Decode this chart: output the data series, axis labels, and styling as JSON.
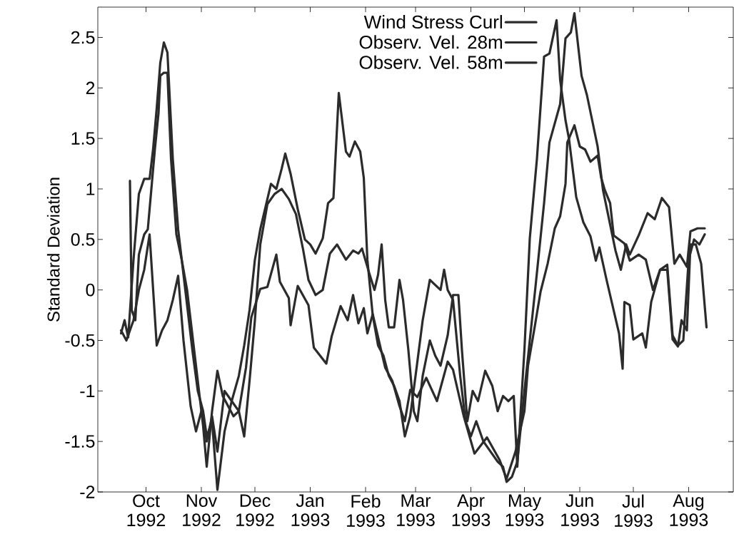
{
  "chart_data": {
    "type": "line",
    "ylabel": "Standard Deviation",
    "legend": "top",
    "xlim": [
      "1992-09-04",
      "1993-08-26"
    ],
    "ylim": [
      -2,
      2.8
    ],
    "yticks": [
      -2,
      -1.5,
      -1,
      -0.5,
      0,
      0.5,
      1,
      1.5,
      2,
      2.5
    ],
    "xticks": [
      {
        "value": "1992-10-01",
        "label": "Oct 1992"
      },
      {
        "value": "1992-11-01",
        "label": "Nov 1992"
      },
      {
        "value": "1992-12-01",
        "label": "Dec 1992"
      },
      {
        "value": "1993-01-01",
        "label": "Jan 1993"
      },
      {
        "value": "1993-02-01",
        "label": "Feb 1993"
      },
      {
        "value": "1993-03-01",
        "label": "Mar 1993"
      },
      {
        "value": "1993-04-01",
        "label": "Apr 1993"
      },
      {
        "value": "1993-05-01",
        "label": "May 1993"
      },
      {
        "value": "1993-06-01",
        "label": "Jun 1993"
      },
      {
        "value": "1993-07-01",
        "label": "Jul 1993"
      },
      {
        "value": "1993-08-01",
        "label": "Aug 1993"
      }
    ],
    "series": [
      {
        "name": "Wind Stress Curl",
        "color": "#2b2b2b",
        "x": [
          "1992-09-17",
          "1992-09-19",
          "1992-09-21",
          "1992-09-24",
          "1992-09-27",
          "1992-09-30",
          "1992-10-03",
          "1992-10-05",
          "1992-10-07",
          "1992-10-09",
          "1992-10-11",
          "1992-10-13",
          "1992-10-16",
          "1992-10-19",
          "1992-10-23",
          "1992-10-27",
          "1992-10-30",
          "1992-11-02",
          "1992-11-04",
          "1992-11-07",
          "1992-11-10",
          "1992-11-14",
          "1992-11-18",
          "1992-11-22",
          "1992-11-25",
          "1992-11-28",
          "1992-12-01",
          "1992-12-04",
          "1992-12-08",
          "1992-12-10",
          "1992-12-13",
          "1992-12-16",
          "1992-12-18",
          "1992-12-21",
          "1992-12-25",
          "1992-12-29",
          "1993-01-01",
          "1993-01-04",
          "1993-01-08",
          "1993-01-11",
          "1993-01-14",
          "1993-01-17",
          "1993-01-21",
          "1993-01-23",
          "1993-01-26",
          "1993-01-29",
          "1993-01-31",
          "1993-02-02",
          "1993-02-05",
          "1993-02-08",
          "1993-02-11",
          "1993-02-14",
          "1993-02-17",
          "1993-02-20",
          "1993-02-23",
          "1993-02-26",
          "1993-03-01",
          "1993-03-05",
          "1993-03-09",
          "1993-03-12",
          "1993-03-15",
          "1993-03-17",
          "1993-03-19",
          "1993-03-22",
          "1993-03-26",
          "1993-03-29",
          "1993-04-01",
          "1993-04-04",
          "1993-04-08",
          "1993-04-12",
          "1993-04-16",
          "1993-04-19",
          "1993-04-21",
          "1993-04-24",
          "1993-04-27",
          "1993-05-01",
          "1993-05-07",
          "1993-05-12",
          "1993-05-15",
          "1993-05-21",
          "1993-05-24",
          "1993-05-27",
          "1993-05-29",
          "1993-06-02",
          "1993-06-05",
          "1993-06-11",
          "1993-06-14",
          "1993-06-21",
          "1993-06-24",
          "1993-06-27",
          "1993-06-29",
          "1993-07-04",
          "1993-07-09",
          "1993-07-13",
          "1993-07-17",
          "1993-07-21",
          "1993-07-24",
          "1993-07-27",
          "1993-07-31",
          "1993-08-02",
          "1993-08-06",
          "1993-08-10"
        ],
        "values": [
          -0.43,
          -0.3,
          -0.47,
          0.3,
          0.95,
          1.1,
          1.1,
          1.4,
          1.8,
          2.25,
          2.45,
          2.35,
          1.3,
          0.6,
          0.0,
          -0.6,
          -1.0,
          -1.2,
          -1.45,
          -1.3,
          -1.98,
          -1.4,
          -1.1,
          -0.85,
          -0.55,
          -0.2,
          0.3,
          0.6,
          0.9,
          1.05,
          1.0,
          1.2,
          1.35,
          1.15,
          0.8,
          0.5,
          0.45,
          0.36,
          0.51,
          0.86,
          0.91,
          1.95,
          1.37,
          1.32,
          1.47,
          1.37,
          1.11,
          0.3,
          -0.25,
          -0.55,
          -0.65,
          -0.85,
          -0.95,
          -1.1,
          -1.45,
          -1.25,
          -0.85,
          -0.3,
          0.1,
          0.05,
          0.0,
          0.2,
          0.0,
          -0.1,
          -0.85,
          -1.3,
          -1.45,
          -1.3,
          -1.5,
          -1.6,
          -1.7,
          -1.75,
          -1.9,
          -1.85,
          -1.7,
          -1.0,
          0.0,
          0.86,
          1.46,
          1.84,
          2.49,
          2.55,
          2.74,
          2.12,
          1.93,
          1.42,
          0.99,
          0.39,
          0.2,
          0.45,
          0.35,
          0.54,
          0.76,
          0.7,
          0.91,
          0.82,
          0.26,
          0.35,
          0.23,
          0.58,
          0.61,
          0.61
        ]
      },
      {
        "name": "Observ. Vel. 28m",
        "color": "#2b2b2b",
        "x": [
          "1992-09-22",
          "1992-09-23",
          "1992-09-25",
          "1992-09-27",
          "1992-09-30",
          "1992-10-02",
          "1992-10-04",
          "1992-10-06",
          "1992-10-08",
          "1992-10-09",
          "1992-10-11",
          "1992-10-13",
          "1992-10-15",
          "1992-10-18",
          "1992-10-21",
          "1992-10-24",
          "1992-10-27",
          "1992-10-30",
          "1992-11-02",
          "1992-11-04",
          "1992-11-07",
          "1992-11-10",
          "1992-11-13",
          "1992-11-16",
          "1992-11-19",
          "1992-11-22",
          "1992-11-25",
          "1992-11-28",
          "1992-12-01",
          "1992-12-04",
          "1992-12-08",
          "1992-12-12",
          "1992-12-16",
          "1992-12-20",
          "1992-12-24",
          "1992-12-28",
          "1992-12-31",
          "1993-01-04",
          "1993-01-08",
          "1993-01-12",
          "1993-01-16",
          "1993-01-21",
          "1993-01-25",
          "1993-01-28",
          "1993-01-30",
          "1993-02-03",
          "1993-02-06",
          "1993-02-08",
          "1993-02-10",
          "1993-02-12",
          "1993-02-14",
          "1993-02-17",
          "1993-02-20",
          "1993-02-22",
          "1993-02-25",
          "1993-02-28",
          "1993-03-02",
          "1993-03-05",
          "1993-03-09",
          "1993-03-12",
          "1993-03-15",
          "1993-03-19",
          "1993-03-22",
          "1993-03-25",
          "1993-03-27",
          "1993-03-30",
          "1993-04-02",
          "1993-04-05",
          "1993-04-09",
          "1993-04-13",
          "1993-04-16",
          "1993-04-19",
          "1993-04-22",
          "1993-04-25",
          "1993-04-27",
          "1993-05-01",
          "1993-05-04",
          "1993-05-08",
          "1993-05-12",
          "1993-05-15",
          "1993-05-19",
          "1993-05-21",
          "1993-05-24",
          "1993-05-26",
          "1993-05-30",
          "1993-06-03",
          "1993-06-07",
          "1993-06-10",
          "1993-06-12",
          "1993-06-16",
          "1993-06-23",
          "1993-06-25",
          "1993-06-26",
          "1993-06-29",
          "1993-07-01",
          "1993-07-06",
          "1993-07-08",
          "1993-07-11",
          "1993-07-16",
          "1993-07-20",
          "1993-07-23",
          "1993-07-26",
          "1993-07-28",
          "1993-07-31",
          "1993-08-02",
          "1993-08-05",
          "1993-08-08",
          "1993-08-11"
        ],
        "values": [
          1.08,
          -0.2,
          -0.3,
          0.35,
          0.55,
          0.6,
          1.0,
          1.4,
          1.75,
          2.12,
          2.15,
          2.15,
          1.3,
          0.55,
          0.3,
          0.0,
          -0.45,
          -0.9,
          -1.35,
          -1.75,
          -1.2,
          -0.8,
          -1.05,
          -1.15,
          -1.25,
          -1.2,
          -1.45,
          -0.9,
          -0.3,
          0.45,
          0.85,
          0.95,
          1.0,
          0.9,
          0.75,
          0.4,
          0.1,
          -0.05,
          0.0,
          0.36,
          0.45,
          0.3,
          0.39,
          0.36,
          0.41,
          0.17,
          0.0,
          0.15,
          0.45,
          -0.1,
          -0.37,
          -0.37,
          0.1,
          -0.1,
          -0.6,
          -1.2,
          -1.3,
          -0.85,
          -0.5,
          -0.65,
          -0.75,
          -0.45,
          -0.05,
          -0.05,
          -0.6,
          -1.3,
          -1.0,
          -1.1,
          -0.8,
          -0.95,
          -1.2,
          -1.05,
          -1.1,
          -1.05,
          -1.75,
          -0.59,
          0.51,
          1.3,
          2.31,
          2.34,
          2.67,
          2.08,
          1.68,
          1.49,
          0.92,
          0.67,
          0.53,
          0.29,
          0.42,
          0.1,
          -0.43,
          -0.78,
          -0.12,
          -0.15,
          -0.49,
          -0.43,
          -0.57,
          -0.12,
          0.2,
          0.2,
          -0.49,
          -0.56,
          -0.3,
          -0.4,
          0.45,
          0.45,
          0.26,
          -0.37
        ]
      },
      {
        "name": "Observ. Vel. 58m",
        "color": "#2b2b2b",
        "x": [
          "1992-09-17",
          "1992-09-20",
          "1992-09-24",
          "1992-09-27",
          "1992-09-30",
          "1992-10-03",
          "1992-10-05",
          "1992-10-07",
          "1992-10-10",
          "1992-10-13",
          "1992-10-16",
          "1992-10-19",
          "1992-10-22",
          "1992-10-26",
          "1992-10-29",
          "1992-11-01",
          "1992-11-04",
          "1992-11-07",
          "1992-11-10",
          "1992-11-14",
          "1992-11-18",
          "1992-11-22",
          "1992-11-26",
          "1992-11-29",
          "1992-12-04",
          "1992-12-08",
          "1992-12-13",
          "1992-12-15",
          "1992-12-20",
          "1992-12-21",
          "1992-12-25",
          "1992-12-31",
          "1993-01-03",
          "1993-01-10",
          "1993-01-13",
          "1993-01-18",
          "1993-01-22",
          "1993-01-25",
          "1993-01-28",
          "1993-01-31",
          "1993-02-02",
          "1993-02-05",
          "1993-02-12",
          "1993-02-16",
          "1993-02-20",
          "1993-02-23",
          "1993-02-26",
          "1993-03-02",
          "1993-03-07",
          "1993-03-13",
          "1993-03-19",
          "1993-03-22",
          "1993-03-28",
          "1993-04-03",
          "1993-04-10",
          "1993-04-17",
          "1993-04-21",
          "1993-04-26",
          "1993-05-01",
          "1993-05-03",
          "1993-05-07",
          "1993-05-10",
          "1993-05-14",
          "1993-05-18",
          "1993-05-21",
          "1993-05-24",
          "1993-05-25",
          "1993-05-29",
          "1993-06-01",
          "1993-06-04",
          "1993-06-07",
          "1993-06-11",
          "1993-06-13",
          "1993-06-15",
          "1993-06-18",
          "1993-06-20",
          "1993-06-26",
          "1993-06-29",
          "1993-07-04",
          "1993-07-08",
          "1993-07-12",
          "1993-07-16",
          "1993-07-20",
          "1993-07-23",
          "1993-07-26",
          "1993-07-29",
          "1993-08-01",
          "1993-08-04",
          "1993-08-07",
          "1993-08-10"
        ],
        "values": [
          -0.4,
          -0.5,
          -0.3,
          0.0,
          0.2,
          0.55,
          0.0,
          -0.55,
          -0.4,
          -0.3,
          -0.1,
          0.14,
          -0.5,
          -1.15,
          -1.4,
          -1.2,
          -1.5,
          -1.25,
          -1.6,
          -1.0,
          -1.1,
          -1.2,
          -0.77,
          -0.27,
          0.01,
          0.03,
          0.35,
          0.08,
          -0.08,
          -0.35,
          0.04,
          -0.15,
          -0.57,
          -0.73,
          -0.46,
          -0.16,
          -0.3,
          -0.05,
          -0.33,
          -0.18,
          -0.43,
          -0.24,
          -0.77,
          -0.9,
          -1.15,
          -1.3,
          -0.99,
          -1.06,
          -0.87,
          -1.1,
          -0.71,
          -0.79,
          -1.25,
          -1.62,
          -1.46,
          -1.68,
          -1.87,
          -1.6,
          -1.2,
          -0.75,
          -0.34,
          -0.02,
          0.26,
          0.61,
          0.73,
          1.05,
          1.46,
          1.63,
          1.42,
          1.39,
          1.27,
          1.33,
          1.11,
          0.99,
          0.86,
          0.54,
          0.46,
          0.29,
          0.35,
          0.3,
          0.0,
          0.2,
          0.25,
          -0.45,
          -0.55,
          -0.5,
          0.3,
          0.5,
          0.45,
          0.55
        ]
      }
    ]
  }
}
